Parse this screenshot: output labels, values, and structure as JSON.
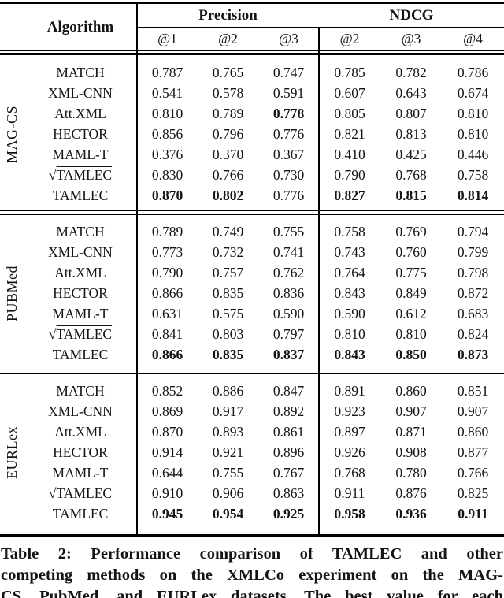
{
  "table": {
    "header": {
      "algorithm_label": "Algorithm",
      "groups": [
        {
          "label": "Precision",
          "subs": [
            "@1",
            "@2",
            "@3"
          ]
        },
        {
          "label": "NDCG",
          "subs": [
            "@2",
            "@3",
            "@4"
          ]
        }
      ]
    },
    "sections": [
      {
        "dataset": "MAG-CS",
        "rows": [
          {
            "algorithm": "MATCH",
            "sqrt": false,
            "values": [
              "0.787",
              "0.765",
              "0.747",
              "0.785",
              "0.782",
              "0.786"
            ],
            "bold": []
          },
          {
            "algorithm": "XML-CNN",
            "sqrt": false,
            "values": [
              "0.541",
              "0.578",
              "0.591",
              "0.607",
              "0.643",
              "0.674"
            ],
            "bold": []
          },
          {
            "algorithm": "Att.XML",
            "sqrt": false,
            "values": [
              "0.810",
              "0.789",
              "0.778",
              "0.805",
              "0.807",
              "0.810"
            ],
            "bold": [
              2
            ]
          },
          {
            "algorithm": "HECTOR",
            "sqrt": false,
            "values": [
              "0.856",
              "0.796",
              "0.776",
              "0.821",
              "0.813",
              "0.810"
            ],
            "bold": []
          },
          {
            "algorithm": "MAML-T",
            "sqrt": false,
            "values": [
              "0.376",
              "0.370",
              "0.367",
              "0.410",
              "0.425",
              "0.446"
            ],
            "bold": []
          },
          {
            "algorithm": "√TAMLEC",
            "sqrt": true,
            "values": [
              "0.830",
              "0.766",
              "0.730",
              "0.790",
              "0.768",
              "0.758"
            ],
            "bold": []
          },
          {
            "algorithm": "TAMLEC",
            "sqrt": false,
            "values": [
              "0.870",
              "0.802",
              "0.776",
              "0.827",
              "0.815",
              "0.814"
            ],
            "bold": [
              0,
              1,
              3,
              4,
              5
            ]
          }
        ]
      },
      {
        "dataset": "PUBMed",
        "rows": [
          {
            "algorithm": "MATCH",
            "sqrt": false,
            "values": [
              "0.789",
              "0.749",
              "0.755",
              "0.758",
              "0.769",
              "0.794"
            ],
            "bold": []
          },
          {
            "algorithm": "XML-CNN",
            "sqrt": false,
            "values": [
              "0.773",
              "0.732",
              "0.741",
              "0.743",
              "0.760",
              "0.799"
            ],
            "bold": []
          },
          {
            "algorithm": "Att.XML",
            "sqrt": false,
            "values": [
              "0.790",
              "0.757",
              "0.762",
              "0.764",
              "0.775",
              "0.798"
            ],
            "bold": []
          },
          {
            "algorithm": "HECTOR",
            "sqrt": false,
            "values": [
              "0.866",
              "0.835",
              "0.836",
              "0.843",
              "0.849",
              "0.872"
            ],
            "bold": []
          },
          {
            "algorithm": "MAML-T",
            "sqrt": false,
            "values": [
              "0.631",
              "0.575",
              "0.590",
              "0.590",
              "0.612",
              "0.683"
            ],
            "bold": []
          },
          {
            "algorithm": "√TAMLEC",
            "sqrt": true,
            "values": [
              "0.841",
              "0.803",
              "0.797",
              "0.810",
              "0.810",
              "0.824"
            ],
            "bold": []
          },
          {
            "algorithm": "TAMLEC",
            "sqrt": false,
            "values": [
              "0.866",
              "0.835",
              "0.837",
              "0.843",
              "0.850",
              "0.873"
            ],
            "bold": [
              0,
              1,
              2,
              3,
              4,
              5
            ]
          }
        ]
      },
      {
        "dataset": "EURLex",
        "rows": [
          {
            "algorithm": "MATCH",
            "sqrt": false,
            "values": [
              "0.852",
              "0.886",
              "0.847",
              "0.891",
              "0.860",
              "0.851"
            ],
            "bold": []
          },
          {
            "algorithm": "XML-CNN",
            "sqrt": false,
            "values": [
              "0.869",
              "0.917",
              "0.892",
              "0.923",
              "0.907",
              "0.907"
            ],
            "bold": []
          },
          {
            "algorithm": "Att.XML",
            "sqrt": false,
            "values": [
              "0.870",
              "0.893",
              "0.861",
              "0.897",
              "0.871",
              "0.860"
            ],
            "bold": []
          },
          {
            "algorithm": "HECTOR",
            "sqrt": false,
            "values": [
              "0.914",
              "0.921",
              "0.896",
              "0.926",
              "0.908",
              "0.877"
            ],
            "bold": []
          },
          {
            "algorithm": "MAML-T",
            "sqrt": false,
            "values": [
              "0.644",
              "0.755",
              "0.767",
              "0.768",
              "0.780",
              "0.766"
            ],
            "bold": []
          },
          {
            "algorithm": "√TAMLEC",
            "sqrt": true,
            "values": [
              "0.910",
              "0.906",
              "0.863",
              "0.911",
              "0.876",
              "0.825"
            ],
            "bold": []
          },
          {
            "algorithm": "TAMLEC",
            "sqrt": false,
            "values": [
              "0.945",
              "0.954",
              "0.925",
              "0.958",
              "0.936",
              "0.911"
            ],
            "bold": [
              0,
              1,
              2,
              3,
              4,
              5
            ]
          }
        ]
      }
    ]
  },
  "caption": {
    "lines": [
      "Table 2: Performance comparison of TAMLEC and other",
      "competing methods on the XMLCo experiment on the MAG-",
      "CS, PubMed, and EURLex datasets. The best value for each"
    ]
  },
  "colors": {
    "ink": "#141414",
    "background": "#ffffff"
  }
}
